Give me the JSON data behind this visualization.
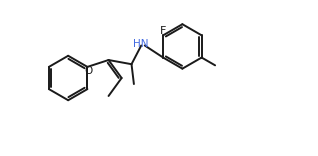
{
  "bg_color": "#ffffff",
  "line_color": "#1a1a1a",
  "N_color": "#4169e1",
  "lw": 1.4,
  "dbo": 0.012,
  "figsize": [
    3.18,
    1.56
  ],
  "dpi": 100,
  "xlim": [
    -0.68,
    0.78
  ],
  "ylim": [
    0.1,
    0.9
  ]
}
